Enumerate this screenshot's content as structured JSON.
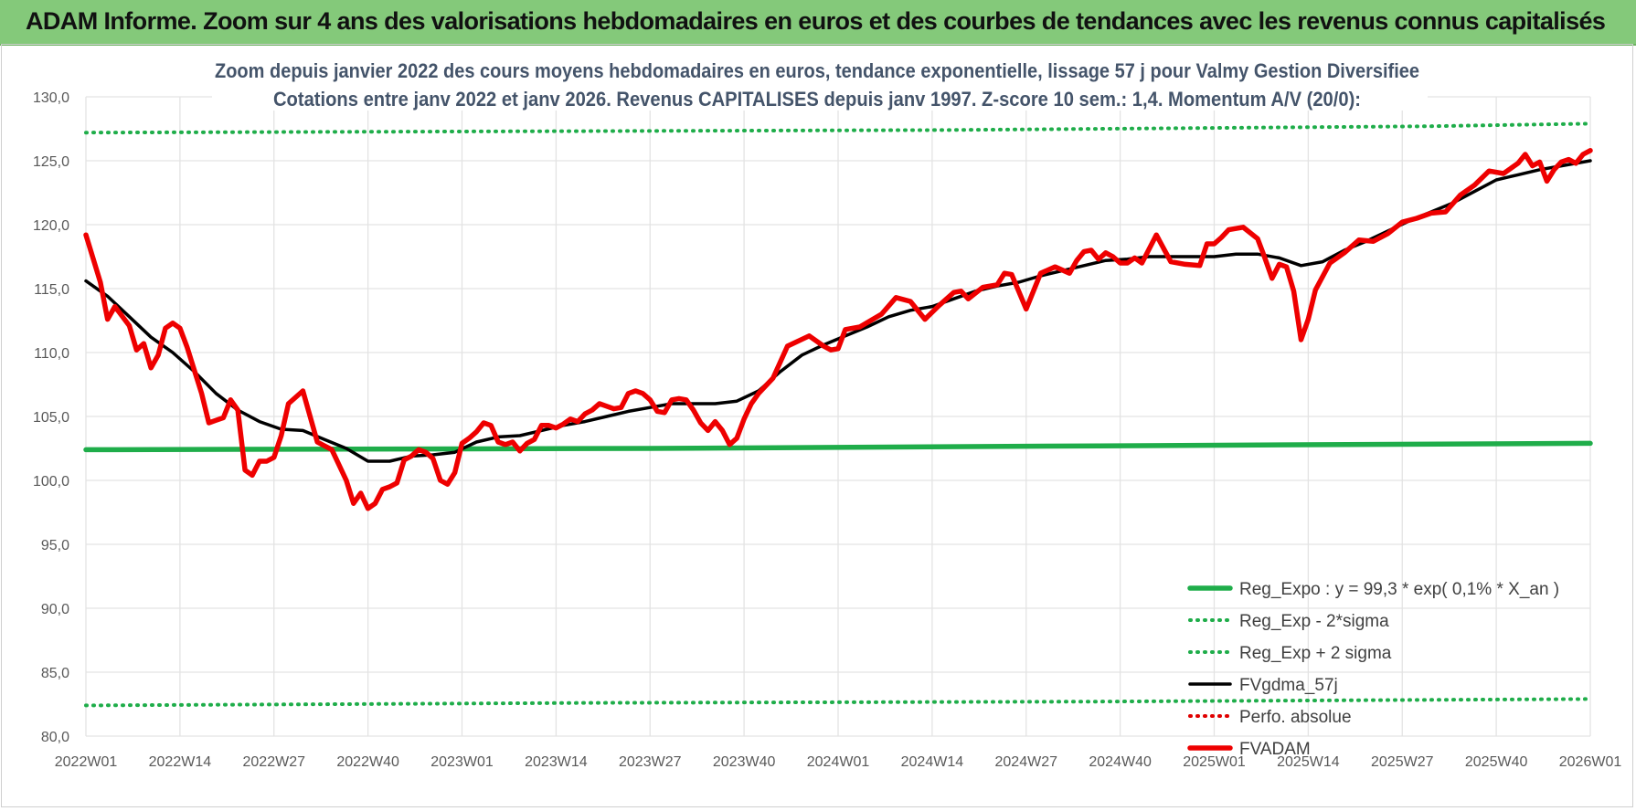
{
  "header": {
    "title": "ADAM Informe. Zoom sur 4 ans des valorisations hebdomadaires en euros et des courbes de tendances avec les revenus connus capitalisés"
  },
  "colors": {
    "header_bg": "#84c97a",
    "reg_expo": "#1fad4a",
    "sigma": "#1fad4a",
    "moving_average": "#000000",
    "perfo_absolue": "#e00000",
    "fvadam": "#ee0000",
    "grid": "#e3e3e3"
  },
  "chart_data": {
    "type": "line",
    "title": "Zoom depuis janvier 2022 des cours moyens hebdomadaires en euros, tendance exponentielle, lissage 57 j pour Valmy Gestion Diversifiee",
    "subtitle": "Cotations entre janv 2022 et janv 2026. Revenus CAPITALISES depuis janv 1997. Z-score 10 sem.: 1,4. Momentum A/V (20/0):",
    "xlabel": "",
    "ylabel": "",
    "ylim": [
      80,
      130
    ],
    "yticks": [
      "130,0",
      "125,0",
      "120,0",
      "115,0",
      "110,0",
      "105,0",
      "100,0",
      "95,0",
      "90,0",
      "85,0",
      "80,0"
    ],
    "xlim": [
      0,
      208
    ],
    "x_tick_labels": [
      "2022W01",
      "2022W14",
      "2022W27",
      "2022W40",
      "2023W01",
      "2023W14",
      "2023W27",
      "2023W40",
      "2024W01",
      "2024W14",
      "2024W27",
      "2024W40",
      "2025W01",
      "2025W14",
      "2025W27",
      "2025W40",
      "2026W01"
    ],
    "x_tick_positions": [
      0,
      13,
      26,
      39,
      52,
      65,
      78,
      91,
      104,
      117,
      130,
      143,
      156,
      169,
      182,
      195,
      208
    ],
    "grid": true,
    "legend_position": "bottom-right",
    "series": [
      {
        "name": "Reg_Expo : y = 99,3 * exp( 0,1% *  X_an )",
        "style": "solid-thick",
        "x": [
          0,
          78,
          140,
          208
        ],
        "values": [
          102.4,
          102.5,
          102.7,
          102.9
        ]
      },
      {
        "name": "Reg_Exp - 2*sigma",
        "style": "dotted",
        "x": [
          0,
          70,
          140,
          208
        ],
        "values": [
          82.4,
          82.6,
          82.7,
          82.9
        ]
      },
      {
        "name": "Reg_Exp + 2 sigma",
        "style": "dotted",
        "x": [
          0,
          118,
          186,
          208
        ],
        "values": [
          127.2,
          127.4,
          127.7,
          127.9
        ]
      },
      {
        "name": "FVgdma_57j",
        "style": "solid",
        "x": [
          0,
          3,
          6,
          9,
          12,
          15,
          18,
          21,
          24,
          27,
          30,
          33,
          36,
          39,
          42,
          45,
          48,
          51,
          54,
          57,
          60,
          63,
          66,
          69,
          72,
          75,
          78,
          81,
          84,
          87,
          90,
          93,
          96,
          99,
          102,
          105,
          108,
          111,
          114,
          117,
          120,
          123,
          126,
          129,
          132,
          135,
          138,
          141,
          144,
          147,
          150,
          153,
          156,
          159,
          162,
          165,
          168,
          171,
          174,
          177,
          180,
          183,
          186,
          189,
          192,
          195,
          198,
          201,
          204,
          208
        ],
        "values": [
          115.6,
          114.4,
          112.8,
          111.2,
          110.0,
          108.5,
          106.8,
          105.5,
          104.6,
          104.0,
          103.9,
          103.2,
          102.5,
          101.5,
          101.5,
          101.9,
          102.0,
          102.2,
          103.0,
          103.4,
          103.5,
          103.9,
          104.3,
          104.6,
          105.0,
          105.4,
          105.7,
          106.0,
          106.0,
          106.0,
          106.2,
          107.0,
          108.5,
          109.8,
          110.6,
          111.3,
          112.0,
          112.8,
          113.3,
          113.6,
          114.2,
          114.8,
          115.2,
          115.5,
          116.0,
          116.4,
          116.8,
          117.2,
          117.3,
          117.5,
          117.5,
          117.5,
          117.5,
          117.7,
          117.7,
          117.4,
          116.8,
          117.1,
          118.0,
          118.7,
          119.5,
          120.3,
          121.0,
          121.7,
          122.6,
          123.5,
          123.9,
          124.3,
          124.6,
          125.0
        ]
      },
      {
        "name": "Perfo. absolue",
        "style": "dotted",
        "x": [],
        "values": []
      },
      {
        "name": "FVADAM",
        "style": "solid-thick",
        "x": [
          0,
          2,
          3,
          4,
          6,
          7,
          8,
          9,
          10,
          11,
          12,
          13,
          14,
          16,
          17,
          18,
          19,
          20,
          21,
          22,
          23,
          24,
          25,
          26,
          27,
          28,
          29,
          30,
          31,
          32,
          34,
          36,
          37,
          38,
          39,
          40,
          41,
          42,
          43,
          44,
          45,
          46,
          47,
          48,
          49,
          50,
          51,
          52,
          53,
          54,
          55,
          56,
          57,
          58,
          59,
          60,
          61,
          62,
          63,
          64,
          65,
          66,
          67,
          68,
          69,
          70,
          71,
          72,
          73,
          74,
          75,
          76,
          77,
          78,
          79,
          80,
          81,
          82,
          83,
          84,
          85,
          86,
          87,
          88,
          89,
          90,
          91,
          92,
          93,
          95,
          97,
          100,
          102,
          103,
          104,
          105,
          107,
          110,
          112,
          114,
          116,
          118,
          120,
          121,
          122,
          124,
          126,
          127,
          128,
          130,
          132,
          134,
          136,
          137,
          138,
          139,
          140,
          141,
          142,
          143,
          144,
          145,
          146,
          148,
          150,
          152,
          154,
          155,
          156,
          157,
          158,
          160,
          162,
          163,
          164,
          165,
          166,
          167,
          168,
          169,
          170,
          172,
          174,
          176,
          178,
          180,
          182,
          184,
          186,
          188,
          190,
          192,
          194,
          196,
          198,
          199,
          200,
          201,
          202,
          203,
          204,
          205,
          206,
          207,
          208
        ],
        "values": [
          119.2,
          115.5,
          112.6,
          113.6,
          112.1,
          110.2,
          110.7,
          108.8,
          109.8,
          111.9,
          112.3,
          111.9,
          110.4,
          106.8,
          104.5,
          104.7,
          104.9,
          106.3,
          105.5,
          100.8,
          100.4,
          101.5,
          101.5,
          101.8,
          103.5,
          106.0,
          106.5,
          107.0,
          105.0,
          103.0,
          102.4,
          100.0,
          98.2,
          99.0,
          97.8,
          98.2,
          99.3,
          99.5,
          99.8,
          101.6,
          101.9,
          102.4,
          102.2,
          101.7,
          100.0,
          99.7,
          100.6,
          102.9,
          103.3,
          103.8,
          104.5,
          104.3,
          103.0,
          102.8,
          103.0,
          102.3,
          102.9,
          103.2,
          104.3,
          104.3,
          104.1,
          104.4,
          104.8,
          104.6,
          105.2,
          105.5,
          106.0,
          105.8,
          105.6,
          105.7,
          106.8,
          107.0,
          106.8,
          106.3,
          105.4,
          105.3,
          106.3,
          106.4,
          106.3,
          105.5,
          104.5,
          103.9,
          104.6,
          103.9,
          102.8,
          103.3,
          104.8,
          106.0,
          106.8,
          108.0,
          110.5,
          111.3,
          110.5,
          110.2,
          110.3,
          111.8,
          112.0,
          113.0,
          114.3,
          114.0,
          112.6,
          113.7,
          114.7,
          114.8,
          114.2,
          115.1,
          115.3,
          116.2,
          116.1,
          113.4,
          116.2,
          116.7,
          116.2,
          117.2,
          117.9,
          118.0,
          117.3,
          117.8,
          117.5,
          117.0,
          117.0,
          117.4,
          117.0,
          119.2,
          117.1,
          116.9,
          116.8,
          118.5,
          118.5,
          119.0,
          119.6,
          119.8,
          118.9,
          117.4,
          115.8,
          116.9,
          116.7,
          114.8,
          111.0,
          112.6,
          114.9,
          117.0,
          117.8,
          118.8,
          118.7,
          119.3,
          120.2,
          120.5,
          120.9,
          121.0,
          122.3,
          123.1,
          124.2,
          124.0,
          124.8,
          125.5,
          124.6,
          124.9,
          123.4,
          124.3,
          124.9,
          125.1,
          124.8,
          125.5,
          125.8
        ]
      }
    ]
  }
}
